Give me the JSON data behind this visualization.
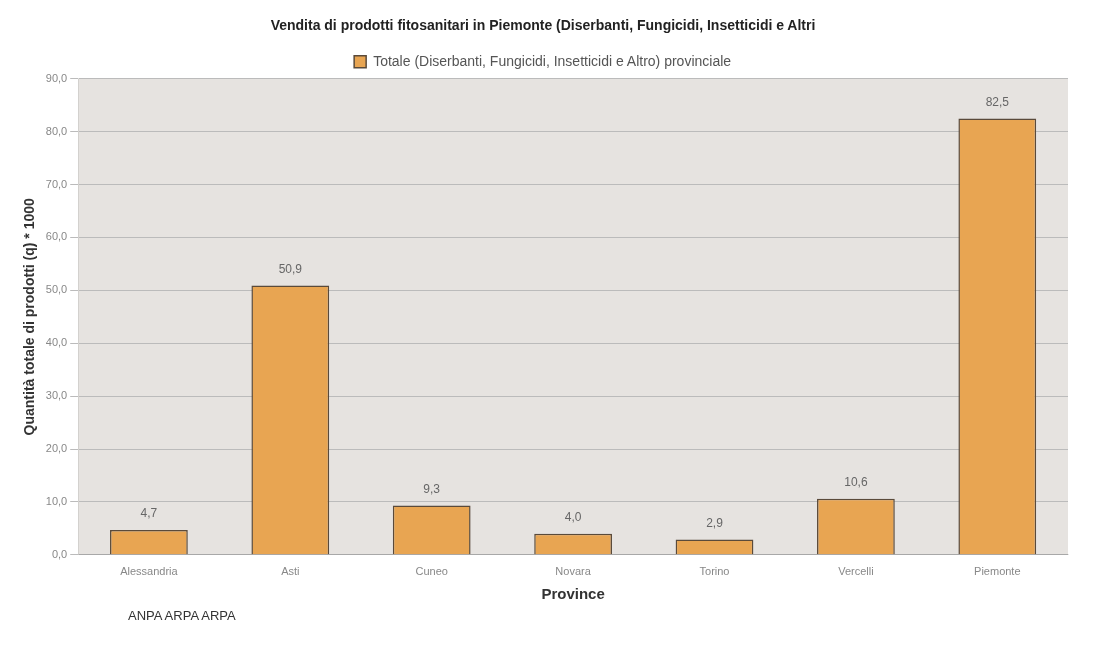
{
  "chart_data": {
    "type": "bar",
    "title": "Vendita di prodotti fitosanitari in Piemonte (Diserbanti, Fungicidi, Insetticidi e Altri",
    "xlabel": "Province",
    "ylabel": "Quantità totale di prodotti (q) * 1000",
    "categories": [
      "Alessandria",
      "Asti",
      "Cuneo",
      "Novara",
      "Torino",
      "Vercelli",
      "Piemonte"
    ],
    "series": [
      {
        "name": "Totale (Diserbanti, Fungicidi, Insetticidi e Altro) provinciale",
        "color": "#e8a552",
        "values": [
          4.7,
          50.9,
          9.3,
          4.0,
          2.9,
          10.6,
          82.5
        ],
        "value_labels": [
          "4,7",
          "50,9",
          "9,3",
          "4,0",
          "2,9",
          "10,6",
          "82,5"
        ]
      }
    ],
    "ylim": [
      0,
      90
    ],
    "yticks": [
      {
        "value": 0,
        "label": "0,0"
      },
      {
        "value": 10,
        "label": "10,0"
      },
      {
        "value": 20,
        "label": "20,0"
      },
      {
        "value": 30,
        "label": "30,0"
      },
      {
        "value": 40,
        "label": "40,0"
      },
      {
        "value": 50,
        "label": "50,0"
      },
      {
        "value": 60,
        "label": "60,0"
      },
      {
        "value": 70,
        "label": "70,0"
      },
      {
        "value": 80,
        "label": "80,0"
      },
      {
        "value": 90,
        "label": "90,0"
      }
    ],
    "grid": "y",
    "legend": "top",
    "annotations": [
      "ANPA ARPA ARPA"
    ]
  }
}
